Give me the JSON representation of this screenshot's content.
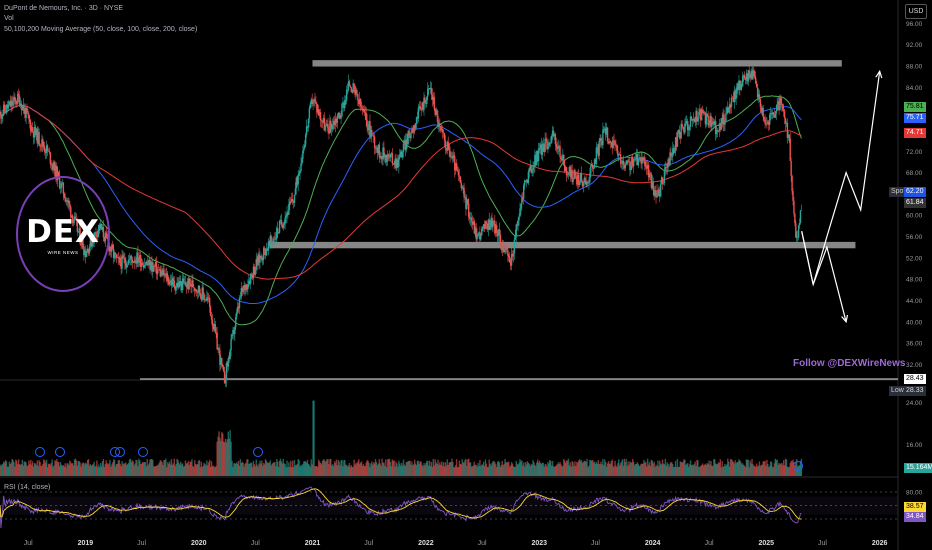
{
  "header": {
    "title": "DuPont de Nemours, Inc. · 3D · NYSE",
    "volume_label": "Vol",
    "indicator_label": "50,100,200 Moving Average (50, close, 100, close, 200, close)",
    "currency": "USD"
  },
  "rsi_label": "RSI (14, close)",
  "follow_text": "Follow @DEXWireNews",
  "logo": {
    "text": "DEX",
    "subtext": "WIRE NEWS"
  },
  "colors": {
    "up": "#26a69a",
    "down": "#ef5350",
    "ma50": "#4caf50",
    "ma100": "#2962ff",
    "ma200": "#e53935",
    "rsi": "#7e57c2",
    "rsi_ma": "#fdd835",
    "zone": "#9e9e9e",
    "accent": "#8e44ad"
  },
  "price_scale": [
    "96.00",
    "92.00",
    "88.00",
    "84.00",
    "80.00",
    "76.00",
    "72.00",
    "68.00",
    "64.00",
    "60.00",
    "56.00",
    "52.00",
    "48.00",
    "44.00",
    "40.00",
    "36.00",
    "32.00"
  ],
  "volume_scale": [
    "24.00",
    "16.00"
  ],
  "rsi_scale": [
    "80.00",
    "20.00"
  ],
  "x_axis": [
    "Jul",
    "2019",
    "Jul",
    "2020",
    "Jul",
    "2021",
    "Jul",
    "2022",
    "Jul",
    "2023",
    "Jul",
    "2024",
    "Jul",
    "2025",
    "Jul",
    "2026"
  ],
  "badges": {
    "ma_a": "75.81",
    "ma_b": "75.71",
    "ma_c": "74.71",
    "last_price": "62.20",
    "last_tag": "Spot",
    "price2": "61.84",
    "low_price": "28.43",
    "low_tag": "Low",
    "low_value": "28.33",
    "volume_value": "15.164M",
    "rsi_a": "38.57",
    "rsi_b": "34.84"
  },
  "chart_data": {
    "type": "candlestick",
    "title": "DuPont de Nemours, Inc. · 3D · NYSE",
    "ylim": [
      28,
      97
    ],
    "x_range": [
      "2018-04",
      "2026-03"
    ],
    "anchors": [
      [
        "2018-04-01",
        79
      ],
      [
        "2018-06-01",
        82
      ],
      [
        "2018-07-15",
        76
      ],
      [
        "2018-09-01",
        72
      ],
      [
        "2018-11-01",
        63
      ],
      [
        "2019-01-01",
        53
      ],
      [
        "2019-02-15",
        58
      ],
      [
        "2019-04-15",
        51
      ],
      [
        "2019-06-15",
        52
      ],
      [
        "2019-08-15",
        50
      ],
      [
        "2019-10-15",
        47
      ],
      [
        "2019-12-15",
        47
      ],
      [
        "2020-02-01",
        44
      ],
      [
        "2020-03-23",
        29
      ],
      [
        "2020-05-15",
        45
      ],
      [
        "2020-07-15",
        52
      ],
      [
        "2020-09-01",
        56
      ],
      [
        "2020-11-01",
        63
      ],
      [
        "2021-01-01",
        82
      ],
      [
        "2021-02-15",
        76
      ],
      [
        "2021-04-01",
        79
      ],
      [
        "2021-05-01",
        85
      ],
      [
        "2021-06-15",
        79
      ],
      [
        "2021-08-01",
        72
      ],
      [
        "2021-10-01",
        70
      ],
      [
        "2021-12-01",
        78
      ],
      [
        "2022-01-15",
        84
      ],
      [
        "2022-02-15",
        76
      ],
      [
        "2022-04-01",
        70
      ],
      [
        "2022-05-01",
        64
      ],
      [
        "2022-06-15",
        56
      ],
      [
        "2022-08-01",
        59
      ],
      [
        "2022-10-01",
        51
      ],
      [
        "2022-11-15",
        66
      ],
      [
        "2023-01-01",
        72
      ],
      [
        "2023-02-15",
        75
      ],
      [
        "2023-04-01",
        68
      ],
      [
        "2023-06-01",
        66
      ],
      [
        "2023-08-01",
        76
      ],
      [
        "2023-10-01",
        69
      ],
      [
        "2023-12-01",
        71
      ],
      [
        "2024-01-15",
        63
      ],
      [
        "2024-02-15",
        69
      ],
      [
        "2024-04-01",
        76
      ],
      [
        "2024-06-01",
        79
      ],
      [
        "2024-08-01",
        76
      ],
      [
        "2024-10-01",
        84
      ],
      [
        "2024-11-15",
        87
      ],
      [
        "2025-01-01",
        77
      ],
      [
        "2025-02-15",
        81
      ],
      [
        "2025-03-15",
        74
      ],
      [
        "2025-04-07",
        54
      ],
      [
        "2025-04-25",
        62
      ]
    ],
    "zones": [
      {
        "name": "resistance",
        "price": 88.5,
        "from": "2021-01-01",
        "to": "2025-09-01"
      },
      {
        "name": "support",
        "price": 54.4,
        "from": "2020-08-15",
        "to": "2025-10-15"
      }
    ],
    "moving_averages": [
      {
        "name": "MA50",
        "period": 50,
        "last": 75.81
      },
      {
        "name": "MA100",
        "period": 100,
        "last": 75.71
      },
      {
        "name": "MA200",
        "period": 200,
        "last": 74.71
      }
    ],
    "last_price": 62.2,
    "low": 28.43,
    "grid": false,
    "projections": {
      "bullish": [
        [
          "2025-04-25",
          57
        ],
        [
          "2025-06-01",
          47
        ],
        [
          "2025-07-15",
          56
        ],
        [
          "2025-09-15",
          68
        ],
        [
          "2025-11-01",
          61
        ],
        [
          "2026-01-01",
          87
        ]
      ],
      "bearish": [
        [
          "2025-04-25",
          57
        ],
        [
          "2025-06-01",
          47
        ],
        [
          "2025-07-15",
          54
        ],
        [
          "2025-09-15",
          40
        ]
      ]
    }
  }
}
